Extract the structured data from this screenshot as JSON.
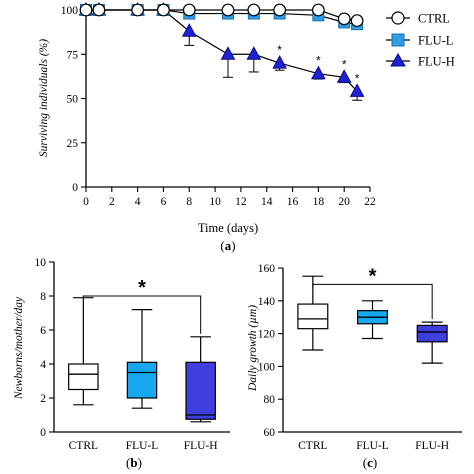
{
  "panels": {
    "a": "a",
    "b": "b",
    "c": "c"
  },
  "chart_data": [
    {
      "type": "line",
      "xlabel": "Time (days)",
      "ylabel": "Surviving individuals (%)",
      "xlim": [
        0,
        22
      ],
      "ylim": [
        0,
        100
      ],
      "xticks": [
        0,
        2,
        4,
        6,
        8,
        10,
        12,
        14,
        16,
        18,
        20,
        22
      ],
      "yticks": [
        0,
        25,
        50,
        75,
        100
      ],
      "legend_position": "right",
      "series": [
        {
          "name": "CTRL",
          "marker": "circle",
          "color": "#ffffff",
          "points": [
            [
              0,
              100
            ],
            [
              1,
              100
            ],
            [
              4,
              100
            ],
            [
              6,
              100
            ],
            [
              8,
              100
            ],
            [
              11,
              100
            ],
            [
              13,
              100
            ],
            [
              15,
              100
            ],
            [
              18,
              100
            ],
            [
              20,
              95
            ],
            [
              21,
              94
            ]
          ],
          "err": [
            0,
            0,
            0,
            0,
            0,
            0,
            0,
            0,
            0,
            0,
            2
          ]
        },
        {
          "name": "FLU-L",
          "marker": "square",
          "color": "#2e9fe6",
          "points": [
            [
              0,
              100
            ],
            [
              1,
              100
            ],
            [
              4,
              100
            ],
            [
              6,
              100
            ],
            [
              8,
              98
            ],
            [
              11,
              98
            ],
            [
              13,
              98
            ],
            [
              15,
              98
            ],
            [
              18,
              97
            ],
            [
              20,
              93
            ],
            [
              21,
              92
            ]
          ],
          "err": [
            0,
            0,
            0,
            0,
            0,
            0,
            0,
            0,
            0,
            0,
            3
          ]
        },
        {
          "name": "FLU-H",
          "marker": "triangle",
          "color": "#1f22d6",
          "points": [
            [
              0,
              100
            ],
            [
              1,
              100
            ],
            [
              4,
              100
            ],
            [
              6,
              100
            ],
            [
              8,
              88
            ],
            [
              11,
              75
            ],
            [
              13,
              75
            ],
            [
              15,
              70
            ],
            [
              18,
              64
            ],
            [
              20,
              62
            ],
            [
              21,
              54
            ]
          ],
          "err": [
            0,
            0,
            0,
            0,
            8,
            13,
            10,
            4,
            3,
            3,
            5
          ]
        }
      ],
      "significance": [
        {
          "x": 15,
          "y": 70,
          "label": "*"
        },
        {
          "x": 18,
          "y": 64,
          "label": "*"
        },
        {
          "x": 20,
          "y": 62,
          "label": "*"
        },
        {
          "x": 21,
          "y": 54,
          "label": "*"
        }
      ]
    },
    {
      "type": "box",
      "ylabel": "Newborns/mother/day",
      "ylim": [
        0,
        10
      ],
      "yticks": [
        0,
        2,
        4,
        6,
        8,
        10
      ],
      "categories": [
        "CTRL",
        "FLU-L",
        "FLU-H"
      ],
      "colors": [
        "#ffffff",
        "#18a8f0",
        "#3f3fe0"
      ],
      "boxes": [
        {
          "min": 1.6,
          "q1": 2.5,
          "median": 3.4,
          "q3": 4.0,
          "max": 7.9
        },
        {
          "min": 1.4,
          "q1": 2.0,
          "median": 3.5,
          "q3": 4.1,
          "max": 7.2
        },
        {
          "min": 0.6,
          "q1": 0.75,
          "median": 1.0,
          "q3": 4.1,
          "max": 5.6
        }
      ],
      "significance": {
        "from": 0,
        "to": 2,
        "y": 8.0,
        "label": "*"
      }
    },
    {
      "type": "box",
      "ylabel": "Daily growth (µm)",
      "ylim": [
        60,
        160
      ],
      "yticks": [
        60,
        80,
        100,
        120,
        140,
        160
      ],
      "categories": [
        "CTRL",
        "FLU-L",
        "FLU-H"
      ],
      "colors": [
        "#ffffff",
        "#18a8f0",
        "#3f3fe0"
      ],
      "boxes": [
        {
          "min": 110,
          "q1": 123,
          "median": 129,
          "q3": 138,
          "max": 155
        },
        {
          "min": 117,
          "q1": 126,
          "median": 130,
          "q3": 134,
          "max": 140
        },
        {
          "min": 102,
          "q1": 115,
          "median": 121,
          "q3": 125,
          "max": 127
        }
      ],
      "significance": {
        "from": 0,
        "to": 2,
        "y": 150,
        "label": "*"
      }
    }
  ]
}
